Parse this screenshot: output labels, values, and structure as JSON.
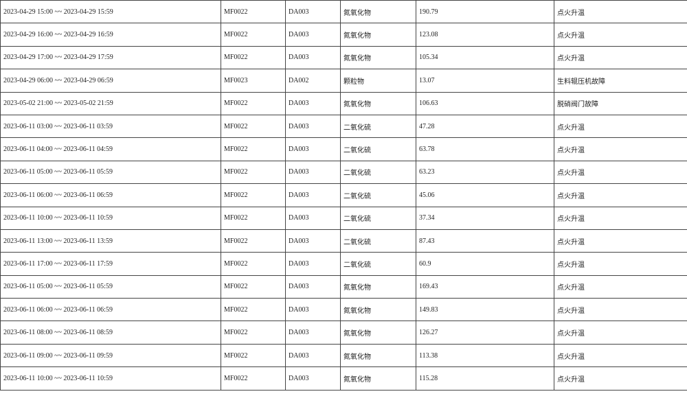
{
  "rows": [
    {
      "period": "2023-04-29 15:00 ~~ 2023-04-29 15:59",
      "outlet": "MF0022",
      "code": "DA003",
      "pollutant": "氮氧化物",
      "value": "190.79",
      "reason": "点火升温"
    },
    {
      "period": "2023-04-29 16:00 ~~ 2023-04-29 16:59",
      "outlet": "MF0022",
      "code": "DA003",
      "pollutant": "氮氧化物",
      "value": "123.08",
      "reason": "点火升温"
    },
    {
      "period": "2023-04-29 17:00 ~~ 2023-04-29 17:59",
      "outlet": "MF0022",
      "code": "DA003",
      "pollutant": "氮氧化物",
      "value": "105.34",
      "reason": "点火升温"
    },
    {
      "period": "2023-04-29 06:00 ~~ 2023-04-29 06:59",
      "outlet": "MF0023",
      "code": "DA002",
      "pollutant": "颗粒物",
      "value": "13.07",
      "reason": "生料辊压机故障"
    },
    {
      "period": "2023-05-02 21:00 ~~ 2023-05-02 21:59",
      "outlet": "MF0022",
      "code": "DA003",
      "pollutant": "氮氧化物",
      "value": "106.63",
      "reason": "脱硝阀门故障"
    },
    {
      "period": "2023-06-11 03:00 ~~ 2023-06-11 03:59",
      "outlet": "MF0022",
      "code": "DA003",
      "pollutant": "二氧化硫",
      "value": "47.28",
      "reason": "点火升温"
    },
    {
      "period": "2023-06-11 04:00 ~~ 2023-06-11 04:59",
      "outlet": "MF0022",
      "code": "DA003",
      "pollutant": "二氧化硫",
      "value": "63.78",
      "reason": "点火升温"
    },
    {
      "period": "2023-06-11 05:00 ~~ 2023-06-11 05:59",
      "outlet": "MF0022",
      "code": "DA003",
      "pollutant": "二氧化硫",
      "value": "63.23",
      "reason": "点火升温"
    },
    {
      "period": "2023-06-11 06:00 ~~ 2023-06-11 06:59",
      "outlet": "MF0022",
      "code": "DA003",
      "pollutant": "二氧化硫",
      "value": "45.06",
      "reason": "点火升温"
    },
    {
      "period": "2023-06-11 10:00 ~~ 2023-06-11 10:59",
      "outlet": "MF0022",
      "code": "DA003",
      "pollutant": "二氧化硫",
      "value": "37.34",
      "reason": "点火升温"
    },
    {
      "period": "2023-06-11 13:00 ~~ 2023-06-11 13:59",
      "outlet": "MF0022",
      "code": "DA003",
      "pollutant": "二氧化硫",
      "value": "87.43",
      "reason": "点火升温"
    },
    {
      "period": "2023-06-11 17:00 ~~ 2023-06-11 17:59",
      "outlet": "MF0022",
      "code": "DA003",
      "pollutant": "二氧化硫",
      "value": "60.9",
      "reason": "点火升温"
    },
    {
      "period": "2023-06-11 05:00 ~~ 2023-06-11 05:59",
      "outlet": "MF0022",
      "code": "DA003",
      "pollutant": "氮氧化物",
      "value": "169.43",
      "reason": "点火升温"
    },
    {
      "period": "2023-06-11 06:00 ~~ 2023-06-11 06:59",
      "outlet": "MF0022",
      "code": "DA003",
      "pollutant": "氮氧化物",
      "value": "149.83",
      "reason": "点火升温"
    },
    {
      "period": "2023-06-11 08:00 ~~ 2023-06-11 08:59",
      "outlet": "MF0022",
      "code": "DA003",
      "pollutant": "氮氧化物",
      "value": "126.27",
      "reason": "点火升温"
    },
    {
      "period": "2023-06-11 09:00 ~~ 2023-06-11 09:59",
      "outlet": "MF0022",
      "code": "DA003",
      "pollutant": "氮氧化物",
      "value": "113.38",
      "reason": "点火升温"
    },
    {
      "period": "2023-06-11 10:00 ~~ 2023-06-11 10:59",
      "outlet": "MF0022",
      "code": "DA003",
      "pollutant": "氮氧化物",
      "value": "115.28",
      "reason": "点火升温"
    }
  ]
}
